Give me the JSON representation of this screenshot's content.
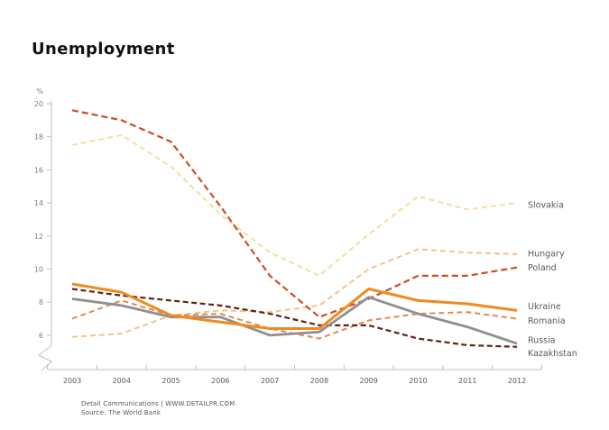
{
  "title": "Unemployment",
  "footer": {
    "line1": "Detail Communications |  WWW.DETAILPR.COM",
    "line2": "Source: The World Bank"
  },
  "chart_data": {
    "type": "line",
    "title": "Unemployment",
    "ylabel": "%",
    "xlabel": "",
    "x": [
      2003,
      2004,
      2005,
      2006,
      2007,
      2008,
      2009,
      2010,
      2011,
      2012
    ],
    "yticks": [
      6,
      8,
      10,
      12,
      14,
      16,
      18,
      20
    ],
    "ylim": [
      5,
      20
    ],
    "axis_break_bottom": true,
    "grid": false,
    "legend_position": "right-edge-labels",
    "series": [
      {
        "name": "Slovakia",
        "style": "dashed",
        "color": "#f4dfa0",
        "width": 2,
        "dash": "6 4",
        "label_dy": 2,
        "values": [
          17.5,
          18.1,
          16.2,
          13.3,
          11.0,
          9.6,
          12.1,
          14.4,
          13.6,
          14.0
        ]
      },
      {
        "name": "Hungary",
        "style": "dashed",
        "color": "#f5c389",
        "width": 2,
        "dash": "6 4",
        "label_dy": -1,
        "values": [
          5.9,
          6.1,
          7.2,
          7.5,
          7.4,
          7.8,
          10.0,
          11.2,
          11.0,
          10.9
        ]
      },
      {
        "name": "Poland",
        "style": "dashed",
        "color": "#cc4e22",
        "width": 2.2,
        "dash": "7 4",
        "label_dy": 0,
        "values": [
          19.6,
          19.0,
          17.7,
          13.8,
          9.6,
          7.1,
          8.2,
          9.6,
          9.6,
          10.1
        ]
      },
      {
        "name": "Romania",
        "style": "dashed",
        "color": "#e08a50",
        "width": 2,
        "dash": "6 4",
        "label_dy": 2,
        "values": [
          7.0,
          8.1,
          7.2,
          7.3,
          6.4,
          5.8,
          6.9,
          7.3,
          7.4,
          7.0
        ]
      },
      {
        "name": "Kazakhstan",
        "style": "dashed",
        "color": "#5e2414",
        "width": 2.2,
        "dash": "6 3.5",
        "label_dy": 7,
        "values": [
          8.8,
          8.4,
          8.1,
          7.8,
          7.3,
          6.6,
          6.6,
          5.8,
          5.4,
          5.3
        ]
      },
      {
        "name": "Russia",
        "style": "solid",
        "color": "#8f8f8f",
        "width": 2.8,
        "dash": "",
        "label_dy": -4,
        "values": [
          8.2,
          7.8,
          7.1,
          7.1,
          6.0,
          6.2,
          8.3,
          7.3,
          6.5,
          5.5
        ]
      },
      {
        "name": "Ukraine",
        "style": "solid",
        "color": "#f08a1e",
        "width": 3,
        "dash": "",
        "label_dy": -5,
        "values": [
          9.1,
          8.6,
          7.2,
          6.8,
          6.4,
          6.4,
          8.8,
          8.1,
          7.9,
          7.5
        ]
      }
    ],
    "axis_color": "#bfbfbf"
  }
}
